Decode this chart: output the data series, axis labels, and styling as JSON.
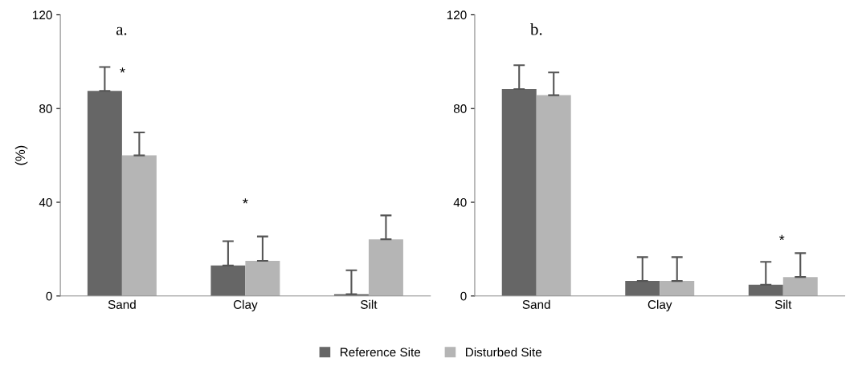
{
  "chart_data": [
    {
      "type": "bar",
      "title": "a.",
      "ylabel": "(%)",
      "categories": [
        "Sand",
        "Clay",
        "Silt"
      ],
      "ylim": [
        0,
        120
      ],
      "yticks": [
        0,
        40,
        80,
        120
      ],
      "grid": false,
      "legend": "bottom",
      "series": [
        {
          "name": "Reference Site",
          "color": "#666666",
          "values": [
            87.5,
            13,
            0.8
          ],
          "errors": [
            [
              87.5,
              97.7
            ],
            [
              13,
              23.4
            ],
            [
              0.8,
              11
            ]
          ]
        },
        {
          "name": "Disturbed Site",
          "color": "#b5b5b5",
          "values": [
            60,
            15,
            24.2
          ],
          "errors": [
            [
              60,
              69.8
            ],
            [
              15,
              25.4
            ],
            [
              24.2,
              34.4
            ]
          ]
        }
      ],
      "annotations": [
        "*",
        "*"
      ]
    },
    {
      "type": "bar",
      "title": "b.",
      "categories": [
        "Sand",
        "Clay",
        "Silt"
      ],
      "ylim": [
        0,
        120
      ],
      "yticks": [
        0,
        40,
        80,
        120
      ],
      "grid": false,
      "series": [
        {
          "color": "#666666",
          "values": [
            88.3,
            6.4,
            4.8
          ],
          "errors": [
            [
              88.3,
              98.5
            ],
            [
              6.4,
              16.6
            ],
            [
              4.8,
              14.6
            ]
          ]
        },
        {
          "color": "#b5b5b5",
          "values": [
            85.7,
            6.4,
            8.1
          ],
          "errors": [
            [
              85.7,
              95.4
            ],
            [
              6.4,
              16.6
            ],
            [
              8.1,
              18.3
            ]
          ]
        }
      ],
      "annotations": [
        "*"
      ]
    }
  ]
}
